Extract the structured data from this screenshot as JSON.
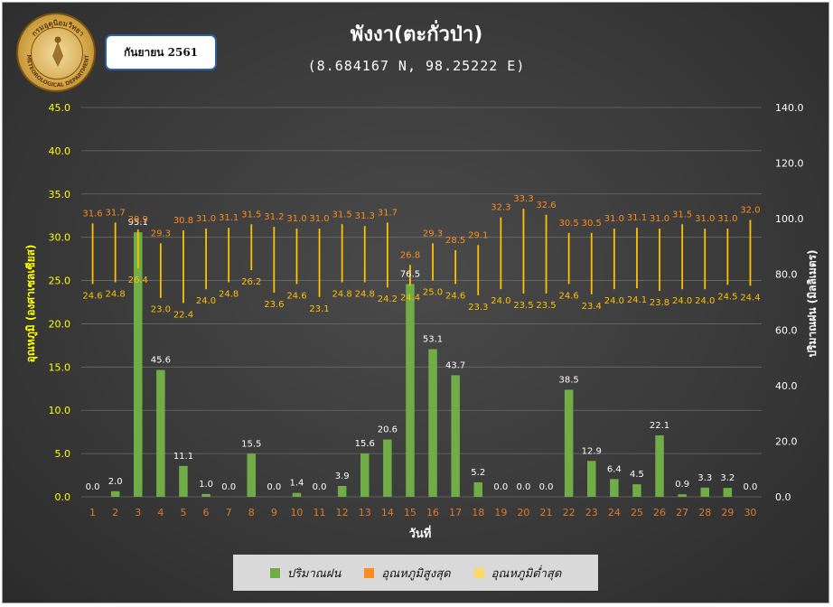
{
  "header": {
    "title": "พังงา(ตะกั่วป่า)",
    "subtitle": "(8.684167 N, 98.25222 E)",
    "month_badge": "กันยายน 2561"
  },
  "logo": {
    "ring_text_top": "กรมอุตุนิยมวิทยา",
    "ring_text_bottom": "METEOROLOGICAL DEPARTMENT"
  },
  "legend": {
    "rain": "ปริมาณฝน",
    "tmax": "อุณหภูมิสูงสุด",
    "tmin": "อุณหภูมิต่ำสุด"
  },
  "colors": {
    "rain": "#70ad47",
    "tmax": "#ff8c1a",
    "tmin": "#ffd966",
    "range_line": "#ffc000",
    "left_axis": "#ffff00",
    "x_ticks": "#e07b28",
    "temp_label": "#ffc000",
    "max_label": "#ff8c1a"
  },
  "chart_data": {
    "type": "bar",
    "xlabel": "วันที่",
    "ylabel_left": "อุณหภูมิ (องศาเซลเซียส)",
    "ylabel_right": "ปริมาณฝน (มิลลิเมตร)",
    "ylim_left": [
      0,
      45
    ],
    "ylim_right": [
      0,
      140
    ],
    "left_ticks": [
      "0.0",
      "5.0",
      "10.0",
      "15.0",
      "20.0",
      "25.0",
      "30.0",
      "35.0",
      "40.0",
      "45.0"
    ],
    "right_ticks": [
      "0.0",
      "20.0",
      "40.0",
      "60.0",
      "80.0",
      "100.0",
      "120.0",
      "140.0"
    ],
    "categories": [
      "1",
      "2",
      "3",
      "4",
      "5",
      "6",
      "7",
      "8",
      "9",
      "10",
      "11",
      "12",
      "13",
      "14",
      "15",
      "16",
      "17",
      "18",
      "19",
      "20",
      "21",
      "22",
      "23",
      "24",
      "25",
      "26",
      "27",
      "28",
      "29",
      "30"
    ],
    "series": [
      {
        "name": "ปริมาณฝน",
        "axis": "right",
        "values": [
          0.0,
          2.0,
          95.1,
          45.6,
          11.1,
          1.0,
          0.0,
          15.5,
          0.0,
          1.4,
          0.0,
          3.9,
          15.6,
          20.6,
          76.5,
          53.1,
          43.7,
          5.2,
          0.0,
          0.0,
          0.0,
          38.5,
          12.9,
          6.4,
          4.5,
          22.1,
          0.9,
          3.3,
          3.2,
          0.0
        ]
      },
      {
        "name": "อุณหภูมิสูงสุด",
        "axis": "left",
        "values": [
          31.6,
          31.7,
          30.9,
          29.3,
          30.8,
          31.0,
          31.1,
          31.5,
          31.2,
          31.0,
          31.0,
          31.5,
          31.3,
          31.7,
          26.8,
          29.3,
          28.5,
          29.1,
          32.3,
          33.3,
          32.6,
          30.5,
          30.5,
          31.0,
          31.1,
          31.0,
          31.5,
          31.0,
          31.0,
          32.0
        ]
      },
      {
        "name": "อุณหภูมิต่ำสุด",
        "axis": "left",
        "values": [
          24.6,
          24.8,
          26.4,
          23.0,
          22.4,
          24.0,
          24.8,
          26.2,
          23.6,
          24.6,
          23.1,
          24.8,
          24.8,
          24.2,
          24.4,
          25.0,
          24.6,
          23.3,
          24.0,
          23.5,
          23.5,
          24.6,
          23.4,
          24.0,
          24.1,
          23.8,
          24.0,
          24.0,
          24.5,
          24.4
        ]
      }
    ],
    "grid": true,
    "legend_position": "bottom"
  }
}
